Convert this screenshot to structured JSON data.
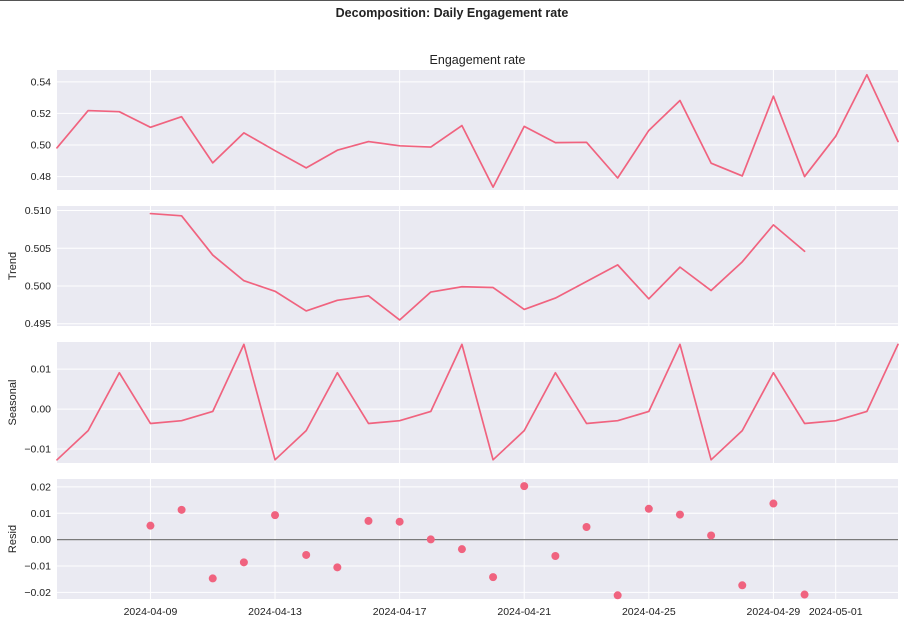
{
  "suptitle": "Decomposition: Daily Engagement rate",
  "colors": {
    "series": "#f0637f",
    "background": "#eaeaf2",
    "grid": "#ffffff",
    "zero_line": "#7a7a7a"
  },
  "chart_data": {
    "type": "line",
    "x_start": "2024-04-06",
    "x_end": "2024-05-03",
    "x_ticks": [
      "2024-04-09",
      "2024-04-13",
      "2024-04-17",
      "2024-04-21",
      "2024-04-25",
      "2024-04-29",
      "2024-05-01"
    ],
    "x": [
      "2024-04-06",
      "2024-04-07",
      "2024-04-08",
      "2024-04-09",
      "2024-04-10",
      "2024-04-11",
      "2024-04-12",
      "2024-04-13",
      "2024-04-14",
      "2024-04-15",
      "2024-04-16",
      "2024-04-17",
      "2024-04-18",
      "2024-04-19",
      "2024-04-20",
      "2024-04-21",
      "2024-04-22",
      "2024-04-23",
      "2024-04-24",
      "2024-04-25",
      "2024-04-26",
      "2024-04-27",
      "2024-04-28",
      "2024-04-29",
      "2024-04-30",
      "2024-05-01",
      "2024-05-02",
      "2024-05-03"
    ],
    "panels": [
      {
        "key": "observed",
        "title": "Engagement rate",
        "ylabel": "",
        "kind": "line",
        "ylim": [
          0.4715,
          0.5475
        ],
        "yticks": [
          0.48,
          0.5,
          0.52,
          0.54
        ],
        "ytick_labels": [
          "0.48",
          "0.50",
          "0.52",
          "0.54"
        ],
        "values": [
          0.4982,
          0.5218,
          0.5211,
          0.5112,
          0.5179,
          0.4887,
          0.5077,
          0.4964,
          0.4855,
          0.4967,
          0.5022,
          0.4995,
          0.4987,
          0.5123,
          0.4733,
          0.5118,
          0.5015,
          0.5017,
          0.4791,
          0.5092,
          0.5282,
          0.4885,
          0.4804,
          0.5309,
          0.48,
          0.5055,
          0.5445,
          0.5022
        ]
      },
      {
        "key": "trend",
        "title": "",
        "ylabel": "Trend",
        "kind": "line",
        "ylim": [
          0.4947,
          0.5106
        ],
        "yticks": [
          0.495,
          0.5,
          0.505,
          0.51
        ],
        "ytick_labels": [
          "0.495",
          "0.500",
          "0.505",
          "0.510"
        ],
        "values": [
          null,
          null,
          null,
          0.5096,
          0.5093,
          0.5041,
          0.5007,
          0.4993,
          0.4967,
          0.4981,
          0.4987,
          0.4955,
          0.4992,
          0.4999,
          0.4998,
          0.4969,
          0.4984,
          0.5006,
          0.5028,
          0.4983,
          0.5025,
          0.4994,
          0.5032,
          0.5081,
          0.5046,
          null,
          null,
          null
        ]
      },
      {
        "key": "seasonal",
        "title": "",
        "ylabel": "Seasonal",
        "kind": "line",
        "ylim": [
          -0.0135,
          0.0168
        ],
        "yticks": [
          -0.01,
          0.0,
          0.01
        ],
        "ytick_labels": [
          "−0.01",
          "0.00",
          "0.01"
        ],
        "values": [
          -0.0127,
          -0.0054,
          0.0091,
          -0.0036,
          -0.0029,
          -0.0006,
          0.0162,
          -0.0127,
          -0.0054,
          0.0091,
          -0.0036,
          -0.0029,
          -0.0006,
          0.0162,
          -0.0127,
          -0.0054,
          0.0091,
          -0.0036,
          -0.0029,
          -0.0006,
          0.0162,
          -0.0127,
          -0.0054,
          0.0091,
          -0.0036,
          -0.0029,
          -0.0006,
          0.0162
        ]
      },
      {
        "key": "resid",
        "title": "",
        "ylabel": "Resid",
        "kind": "scatter",
        "ylim": [
          -0.0225,
          0.023
        ],
        "yticks": [
          -0.02,
          -0.01,
          0.0,
          0.01,
          0.02
        ],
        "ytick_labels": [
          "−0.02",
          "−0.01",
          "0.00",
          "0.01",
          "0.02"
        ],
        "zero_line": true,
        "values": [
          null,
          null,
          null,
          0.0053,
          0.0113,
          -0.0147,
          -0.0086,
          0.0093,
          -0.0058,
          -0.0105,
          0.0071,
          0.0068,
          0.0001,
          -0.0036,
          -0.0142,
          0.0203,
          -0.0062,
          0.0048,
          -0.0211,
          0.0117,
          0.0095,
          0.0016,
          -0.0173,
          0.0137,
          -0.0208,
          null,
          null,
          null
        ]
      }
    ]
  }
}
